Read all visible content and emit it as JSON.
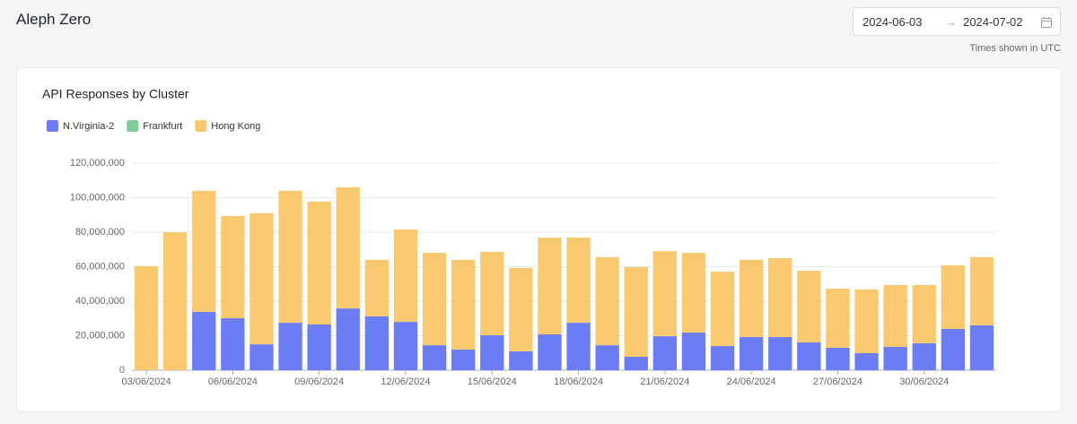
{
  "header": {
    "title": "Aleph Zero",
    "date_from": "2024-06-03",
    "arrow": "→",
    "date_to": "2024-07-02",
    "note": "Times shown in UTC"
  },
  "chart_data": {
    "type": "stacked_bar",
    "title": "API Responses by Cluster",
    "categories": [
      "03/06/2024",
      null,
      null,
      "06/06/2024",
      null,
      null,
      "09/06/2024",
      null,
      null,
      "12/06/2024",
      null,
      null,
      "15/06/2024",
      null,
      null,
      "18/06/2024",
      null,
      null,
      "21/06/2024",
      null,
      null,
      "24/06/2024",
      null,
      null,
      "27/06/2024",
      null,
      null,
      "30/06/2024",
      null,
      null
    ],
    "series": [
      {
        "name": "N.Virginia-2",
        "color": "#6b7cf5",
        "values": [
          0,
          0,
          33800000,
          30100000,
          15000000,
          27500000,
          26500000,
          35800000,
          31200000,
          28000000,
          14500000,
          12000000,
          20300000,
          11000000,
          20800000,
          27500000,
          14500000,
          7800000,
          19700000,
          21800000,
          14000000,
          19200000,
          19200000,
          16100000,
          13000000,
          9900000,
          13500000,
          15600000,
          23900000,
          26000000
        ]
      },
      {
        "name": "Frankfurt",
        "color": "#7ccf9c",
        "values": [
          0,
          0,
          0,
          0,
          0,
          0,
          0,
          0,
          0,
          0,
          0,
          0,
          0,
          0,
          0,
          0,
          0,
          0,
          0,
          0,
          0,
          0,
          0,
          0,
          0,
          0,
          0,
          0,
          0,
          0
        ]
      },
      {
        "name": "Hong Kong",
        "color": "#f8c96f",
        "values": [
          60300000,
          80000000,
          70200000,
          59300000,
          76000000,
          76500000,
          71200000,
          70200000,
          32800000,
          53600000,
          53500000,
          52000000,
          48300000,
          48200000,
          56100000,
          49400000,
          51000000,
          51900000,
          49300000,
          46200000,
          43100000,
          44800000,
          45800000,
          41600000,
          34300000,
          36900000,
          35900000,
          33800000,
          36900000,
          39500000
        ]
      }
    ],
    "ylim": [
      0,
      120000000
    ],
    "yticks": [
      0,
      {
        "value": 20000000,
        "label": "20,000,000"
      },
      {
        "value": 40000000,
        "label": "40,000,000"
      },
      {
        "value": 60000000,
        "label": "60,000,000"
      },
      {
        "value": 80000000,
        "label": "80,000,000"
      },
      {
        "value": 100000000,
        "label": "100,000,000"
      },
      {
        "value": 120000000,
        "label": "120,000,000"
      }
    ],
    "grid": true,
    "legend": "top-left"
  }
}
